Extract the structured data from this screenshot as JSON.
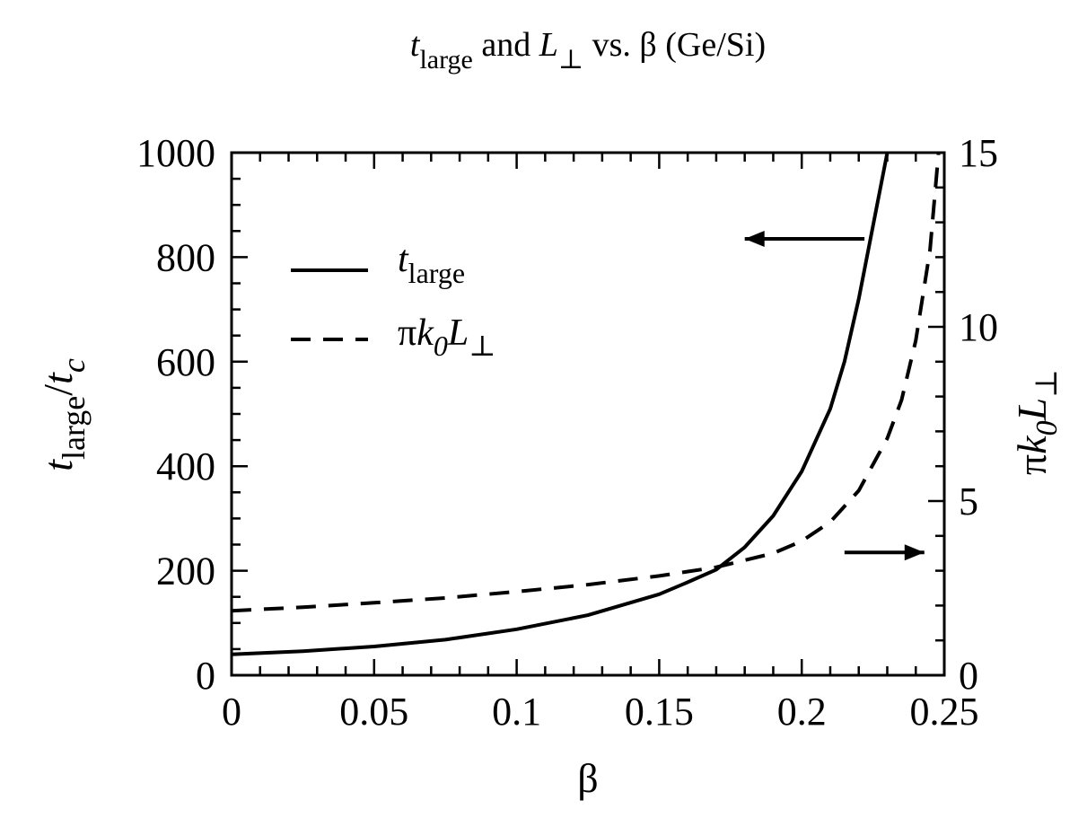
{
  "chart_data": {
    "type": "line",
    "title": "t_large and L_⊥ vs. β (Ge/Si)",
    "title_parts": {
      "t": "t",
      "t_sub": "large",
      "and": " and ",
      "L": "L",
      "L_sub": "⊥",
      "rest": " vs. β (Ge/Si)"
    },
    "xlabel": "β",
    "ylabel_left": {
      "t": "t",
      "sub": "large",
      "slash": "/",
      "t2": "t",
      "sub2": "c"
    },
    "ylabel_right": {
      "pi": "π",
      "k": "k",
      "sub0": "0",
      "L": "L",
      "sub": "⊥"
    },
    "xlim": [
      0,
      0.25
    ],
    "ylim_left": [
      0,
      1000
    ],
    "ylim_right": [
      0,
      15
    ],
    "x_ticks": [
      "0",
      "0.05",
      "0.1",
      "0.15",
      "0.2",
      "0.25"
    ],
    "y_left_ticks": [
      "0",
      "200",
      "400",
      "600",
      "800",
      "1000"
    ],
    "y_right_ticks": [
      "0",
      "5",
      "10",
      "15"
    ],
    "legend_position": "upper-left",
    "series": [
      {
        "name": "t_large",
        "legend": {
          "t": "t",
          "sub": "large"
        },
        "axis": "left",
        "style": "solid",
        "x": [
          0,
          0.025,
          0.05,
          0.075,
          0.1,
          0.125,
          0.15,
          0.16,
          0.17,
          0.18,
          0.19,
          0.2,
          0.21,
          0.215,
          0.22,
          0.225,
          0.23
        ],
        "y": [
          40,
          46,
          55,
          68,
          88,
          115,
          155,
          178,
          202,
          245,
          305,
          390,
          510,
          600,
          720,
          860,
          1000
        ]
      },
      {
        "name": "πk0L⊥",
        "legend": {
          "pi": "π",
          "k": "k",
          "sub0": "0",
          "L": "L",
          "sub": "⊥"
        },
        "axis": "right",
        "style": "dashed",
        "x": [
          0,
          0.025,
          0.05,
          0.075,
          0.1,
          0.125,
          0.15,
          0.17,
          0.19,
          0.2,
          0.21,
          0.22,
          0.23,
          0.235,
          0.24,
          0.245,
          0.248
        ],
        "y": [
          1.85,
          1.95,
          2.08,
          2.22,
          2.4,
          2.6,
          2.85,
          3.1,
          3.5,
          3.85,
          4.4,
          5.3,
          6.8,
          7.9,
          9.6,
          12.2,
          15
        ]
      }
    ],
    "annotations": [
      {
        "name": "left-axis-arrow",
        "direction": "left",
        "x_from": 0.222,
        "x_to": 0.18,
        "y_left": 835
      },
      {
        "name": "right-axis-arrow",
        "direction": "right",
        "x_from": 0.215,
        "x_to": 0.243,
        "y_left": 235
      }
    ]
  }
}
